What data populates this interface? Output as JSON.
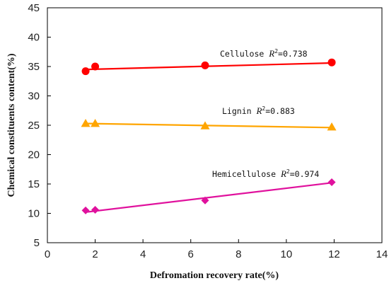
{
  "chart_data": {
    "type": "scatter",
    "title": "",
    "xlabel": "Defromation recovery rate(%)",
    "ylabel": "Chemical constituents content(%)",
    "xlim": [
      0,
      14
    ],
    "ylim": [
      5,
      45
    ],
    "xticks": [
      "0",
      "2",
      "4",
      "6",
      "8",
      "10",
      "12",
      "14"
    ],
    "yticks": [
      "5",
      "10",
      "15",
      "20",
      "25",
      "30",
      "35",
      "40",
      "45"
    ],
    "grid": false,
    "legend": "none",
    "series": [
      {
        "name": "Cellulose",
        "marker": "circle",
        "color": "#ff0000",
        "x": [
          1.6,
          2.0,
          6.6,
          11.9
        ],
        "y": [
          34.2,
          35.0,
          35.2,
          35.7
        ],
        "trendline": {
          "x": [
            1.6,
            11.9
          ],
          "y": [
            34.5,
            35.6
          ]
        },
        "annotation": {
          "label": "Cellulose",
          "r2_symbol": "R",
          "r2_sup": "2",
          "r2_value": "=0.738"
        }
      },
      {
        "name": "Lignin",
        "marker": "triangle",
        "color": "#ffa500",
        "x": [
          1.6,
          2.0,
          6.6,
          11.9
        ],
        "y": [
          25.3,
          25.3,
          24.9,
          24.7
        ],
        "trendline": {
          "x": [
            1.6,
            11.9
          ],
          "y": [
            25.3,
            24.6
          ]
        },
        "annotation": {
          "label": "Lignin",
          "r2_symbol": "R",
          "r2_sup": "2",
          "r2_value": "=0.883"
        }
      },
      {
        "name": "Hemicellulose",
        "marker": "diamond",
        "color": "#e0119d",
        "x": [
          1.6,
          2.0,
          6.6,
          11.9
        ],
        "y": [
          10.5,
          10.6,
          12.2,
          15.3
        ],
        "trendline": {
          "x": [
            1.6,
            11.9
          ],
          "y": [
            10.2,
            15.2
          ]
        },
        "annotation": {
          "label": "Hemicellulose",
          "r2_symbol": "R",
          "r2_sup": "2",
          "r2_value": "=0.974"
        }
      }
    ]
  }
}
